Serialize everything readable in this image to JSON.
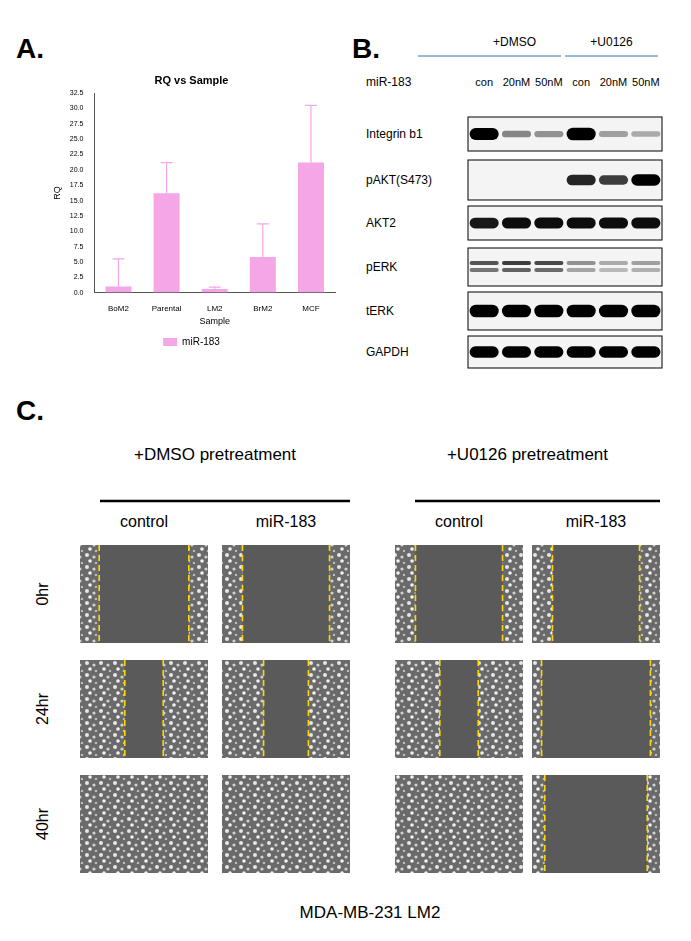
{
  "chart_data": {
    "type": "bar",
    "panel_label": "A.",
    "title": "RQ vs Sample",
    "x_label": "Sample",
    "y_label": "RQ",
    "categories": [
      "BoM2",
      "Parental",
      "LM2",
      "BrM2",
      "MCF"
    ],
    "series": [
      {
        "name": "miR-183",
        "color": "#f4a6e6",
        "values": [
          1.0,
          16.2,
          0.6,
          5.8,
          21.2
        ],
        "errors": [
          4.5,
          5.0,
          0.3,
          5.4,
          9.3
        ]
      }
    ],
    "ylim": [
      0,
      32.5
    ],
    "yticks": [
      {
        "value": 0,
        "label": "0.0"
      },
      {
        "value": 2.5,
        "label": "2.5"
      },
      {
        "value": 5,
        "label": "5.0"
      },
      {
        "value": 7.5,
        "label": "7.5"
      },
      {
        "value": 10,
        "label": "10.0"
      },
      {
        "value": 12.5,
        "label": "12.5"
      },
      {
        "value": 15,
        "label": "15.0"
      },
      {
        "value": 17.5,
        "label": "17.5"
      },
      {
        "value": 20,
        "label": "20.0"
      },
      {
        "value": 22.5,
        "label": "22.5"
      },
      {
        "value": 25,
        "label": "25.0"
      },
      {
        "value": 27.5,
        "label": "27.5"
      },
      {
        "value": 30,
        "label": "30.0"
      },
      {
        "value": 32.5,
        "label": "32.5"
      }
    ],
    "grid": false,
    "legend": "bottom"
  },
  "blot": {
    "panel_label": "B.",
    "groups": [
      {
        "label": "+DMSO",
        "lanes": 3
      },
      {
        "label": "+U0126",
        "lanes": 3
      }
    ],
    "row_label": "miR-183",
    "lanes": [
      "con",
      "20nM",
      "50nM",
      "con",
      "20nM",
      "50nM"
    ],
    "rows": [
      {
        "name": "Integrin b1",
        "intensity": [
          0.9,
          0.3,
          0.25,
          0.95,
          0.2,
          0.15
        ]
      },
      {
        "name": "pAKT(S473)",
        "intensity": [
          0,
          0,
          0,
          0.7,
          0.6,
          0.85
        ]
      },
      {
        "name": "AKT2",
        "intensity": [
          0.75,
          0.8,
          0.8,
          0.8,
          0.8,
          0.8
        ]
      },
      {
        "name": "pERK",
        "intensity": [
          0.65,
          0.75,
          0.7,
          0.4,
          0.3,
          0.35
        ]
      },
      {
        "name": "tERK",
        "intensity": [
          0.95,
          0.95,
          0.95,
          0.95,
          0.95,
          0.95
        ]
      },
      {
        "name": "GAPDH",
        "intensity": [
          0.85,
          0.85,
          0.85,
          0.85,
          0.85,
          0.85
        ]
      }
    ]
  },
  "scratch_assay": {
    "panel_label": "C.",
    "groups": [
      "+DMSO pretreatment",
      "+U0126 pretreatment"
    ],
    "columns": [
      "control",
      "miR-183",
      "control",
      "miR-183"
    ],
    "times": [
      "0hr",
      "24hr",
      "40hr"
    ],
    "wound_width": [
      [
        0.7,
        0.68,
        0.68,
        0.68
      ],
      [
        0.3,
        0.35,
        0.3,
        0.85
      ],
      [
        0,
        0,
        0,
        0.8
      ]
    ],
    "cell_line": "MDA-MB-231 LM2"
  }
}
